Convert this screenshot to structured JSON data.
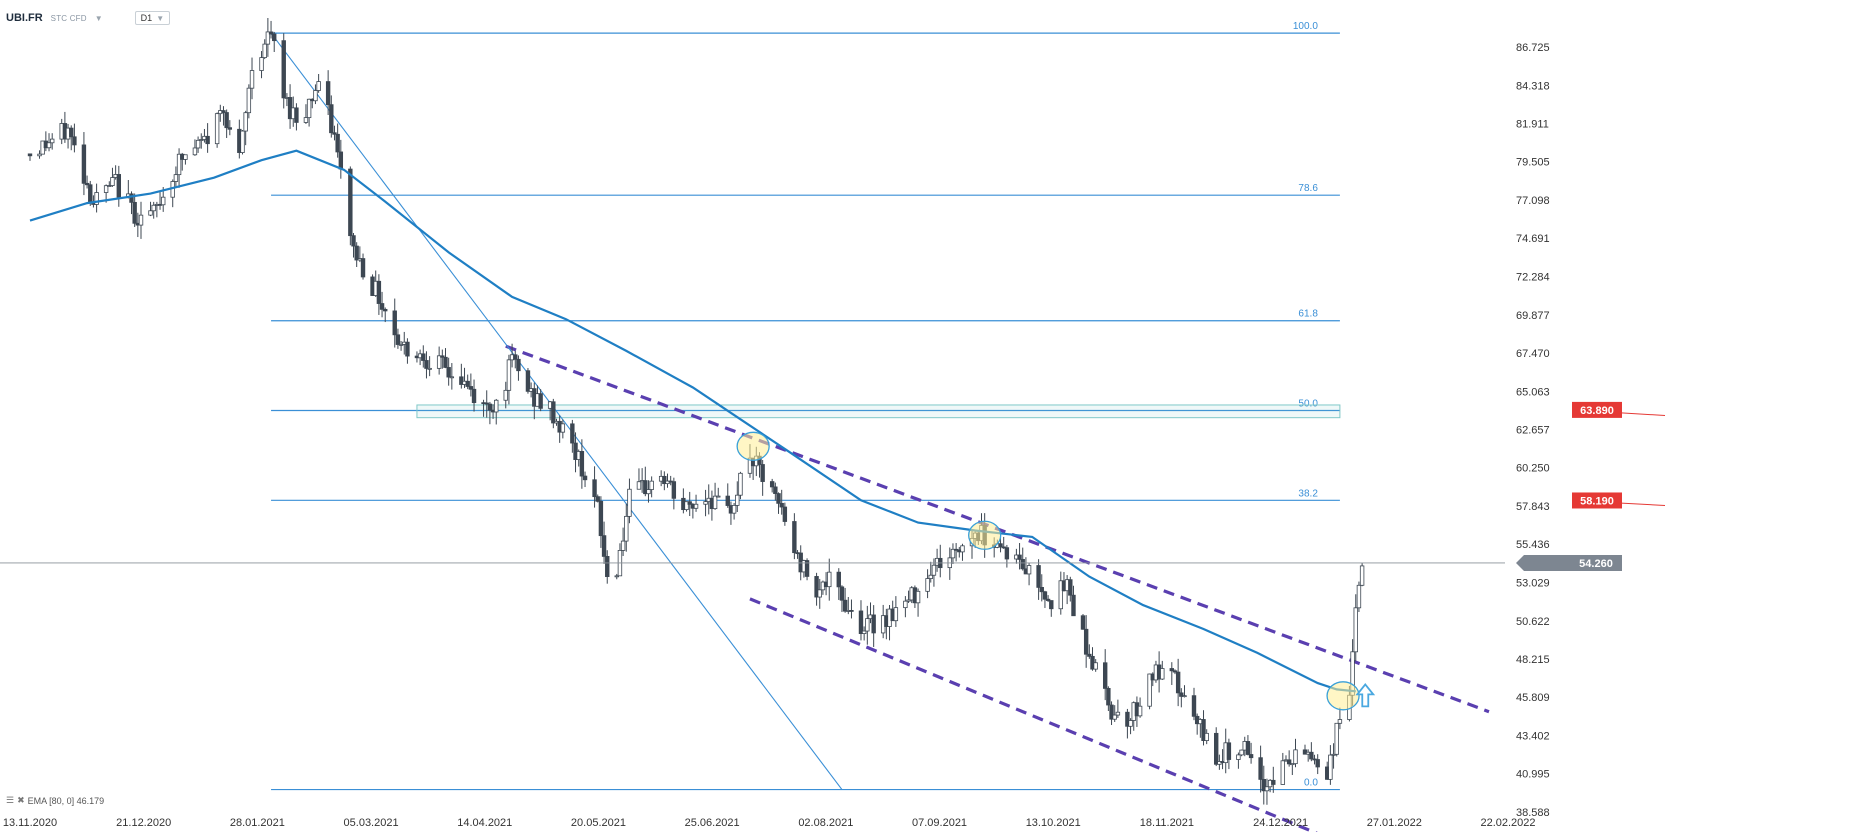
{
  "header": {
    "symbol": "UBI.FR",
    "instrument_type": "STC CFD",
    "timeframe": "D1"
  },
  "indicator_legend": {
    "text": "EMA [80, 0] 46.179"
  },
  "colors": {
    "fib": "#3a8fd6",
    "ema": "#1f7fc4",
    "channel": "#5a3fb0",
    "candle_up": "#ffffff",
    "candle_down": "#3d4752",
    "badge_red": "#e53935",
    "badge_gray": "#7d8691"
  },
  "chart_data": {
    "type": "candlestick",
    "x_axis": {
      "start": "2020-11-13",
      "end": "2022-02-22",
      "tick_labels": [
        "13.11.2020",
        "21.12.2020",
        "28.01.2021",
        "05.03.2021",
        "14.04.2021",
        "20.05.2021",
        "25.06.2021",
        "02.08.2021",
        "07.09.2021",
        "13.10.2021",
        "18.11.2021",
        "24.12.2021",
        "27.01.2022",
        "22.02.2022"
      ]
    },
    "y_axis": {
      "min": 38.588,
      "max": 86.725,
      "tick_labels": [
        "86.725",
        "84.318",
        "81.911",
        "79.505",
        "77.098",
        "74.691",
        "72.284",
        "69.877",
        "67.470",
        "65.063",
        "62.657",
        "60.250",
        "57.843",
        "55.436",
        "53.029",
        "50.622",
        "48.215",
        "45.809",
        "43.402",
        "40.995",
        "38.588"
      ]
    },
    "last_price": "54.260",
    "price_badges": [
      {
        "value": "63.890",
        "color": "red"
      },
      {
        "value": "58.190",
        "color": "red"
      }
    ],
    "fibonacci": {
      "start": "2021-01-28",
      "end": "2021-12-31",
      "levels": [
        {
          "label": "100.0",
          "price": 87.6
        },
        {
          "label": "78.6",
          "price": 77.4
        },
        {
          "label": "61.8",
          "price": 69.5
        },
        {
          "label": "50.0",
          "price": 63.85
        },
        {
          "label": "38.2",
          "price": 58.2
        },
        {
          "label": "0.0",
          "price": 40.0
        }
      ]
    },
    "zone": {
      "from": 63.4,
      "to": 64.2
    },
    "ema": {
      "name": "EMA [80, 0]",
      "value": 46.179,
      "points": [
        [
          "2020-11-13",
          75.8
        ],
        [
          "2020-12-01",
          76.9
        ],
        [
          "2020-12-21",
          77.5
        ],
        [
          "2021-01-10",
          78.5
        ],
        [
          "2021-01-25",
          79.6
        ],
        [
          "2021-02-05",
          80.2
        ],
        [
          "2021-02-20",
          79.0
        ],
        [
          "2021-03-05",
          77.0
        ],
        [
          "2021-03-25",
          73.8
        ],
        [
          "2021-04-14",
          71.0
        ],
        [
          "2021-05-01",
          69.6
        ],
        [
          "2021-05-20",
          67.6
        ],
        [
          "2021-06-10",
          65.3
        ],
        [
          "2021-06-25",
          63.3
        ],
        [
          "2021-07-10",
          61.3
        ],
        [
          "2021-08-02",
          58.2
        ],
        [
          "2021-08-20",
          56.8
        ],
        [
          "2021-09-07",
          56.3
        ],
        [
          "2021-09-25",
          55.9
        ],
        [
          "2021-10-13",
          53.4
        ],
        [
          "2021-10-30",
          51.6
        ],
        [
          "2021-11-18",
          50.1
        ],
        [
          "2021-12-05",
          48.6
        ],
        [
          "2021-12-24",
          46.7
        ],
        [
          "2021-12-30",
          46.3
        ],
        [
          "2022-01-05",
          46.18
        ]
      ]
    },
    "trendlines": [
      {
        "name": "Upper channel",
        "style": "dashed",
        "from": [
          "2021-04-12",
          67.9
        ],
        "to": [
          "2022-02-16",
          44.9
        ]
      },
      {
        "name": "Lower channel",
        "style": "dashed",
        "from": [
          "2021-06-28",
          52.0
        ],
        "to": [
          "2022-01-03",
          36.4
        ]
      },
      {
        "name": "Fibonacci trend",
        "style": "solid",
        "from": [
          "2021-01-28",
          87.6
        ],
        "to": [
          "2021-07-27",
          40.0
        ]
      }
    ],
    "highlights": [
      {
        "date": "2021-06-29",
        "price": 61.6
      },
      {
        "date": "2021-09-10",
        "price": 56.0
      },
      {
        "date": "2022-01-01",
        "price": 45.9
      }
    ],
    "arrow": {
      "date": "2022-01-08",
      "price": 45.8,
      "direction": "up"
    },
    "series_close_path": [
      [
        "2020-11-13",
        80.0
      ],
      [
        "2020-11-25",
        81.5
      ],
      [
        "2020-12-03",
        77.0
      ],
      [
        "2020-12-10",
        78.2
      ],
      [
        "2020-12-17",
        76.0
      ],
      [
        "2020-12-22",
        76.2
      ],
      [
        "2020-12-30",
        79.5
      ],
      [
        "2021-01-08",
        81.0
      ],
      [
        "2021-01-13",
        83.0
      ],
      [
        "2021-01-18",
        79.5
      ],
      [
        "2021-01-22",
        85.5
      ],
      [
        "2021-01-28",
        87.6
      ],
      [
        "2021-02-01",
        83.5
      ],
      [
        "2021-02-06",
        82.0
      ],
      [
        "2021-02-12",
        84.5
      ],
      [
        "2021-02-17",
        81.0
      ],
      [
        "2021-02-23",
        74.0
      ],
      [
        "2021-03-03",
        71.0
      ],
      [
        "2021-03-10",
        68.0
      ],
      [
        "2021-03-20",
        67.0
      ],
      [
        "2021-03-30",
        65.5
      ],
      [
        "2021-04-05",
        64.0
      ],
      [
        "2021-04-10",
        64.5
      ],
      [
        "2021-04-14",
        67.0
      ],
      [
        "2021-04-20",
        64.8
      ],
      [
        "2021-04-26",
        63.8
      ],
      [
        "2021-05-02",
        62.0
      ],
      [
        "2021-05-08",
        59.5
      ],
      [
        "2021-05-11",
        57.5
      ],
      [
        "2021-05-14",
        53.3
      ],
      [
        "2021-05-17",
        54.0
      ],
      [
        "2021-05-21",
        58.2
      ],
      [
        "2021-05-31",
        59.8
      ],
      [
        "2021-06-07",
        57.6
      ],
      [
        "2021-06-15",
        58.5
      ],
      [
        "2021-06-21",
        57.3
      ],
      [
        "2021-06-28",
        61.0
      ],
      [
        "2021-07-02",
        59.6
      ],
      [
        "2021-07-08",
        57.5
      ],
      [
        "2021-07-13",
        54.5
      ],
      [
        "2021-07-19",
        52.8
      ],
      [
        "2021-07-23",
        53.0
      ],
      [
        "2021-07-30",
        51.2
      ],
      [
        "2021-08-03",
        50.2
      ],
      [
        "2021-08-09",
        50.8
      ],
      [
        "2021-08-17",
        51.8
      ],
      [
        "2021-08-24",
        54.0
      ],
      [
        "2021-08-31",
        54.8
      ],
      [
        "2021-09-07",
        56.2
      ],
      [
        "2021-09-13",
        55.8
      ],
      [
        "2021-09-17",
        55.0
      ],
      [
        "2021-09-24",
        53.7
      ],
      [
        "2021-10-01",
        52.0
      ],
      [
        "2021-10-06",
        52.8
      ],
      [
        "2021-10-13",
        48.5
      ],
      [
        "2021-10-20",
        45.0
      ],
      [
        "2021-10-26",
        44.5
      ],
      [
        "2021-11-02",
        47.3
      ],
      [
        "2021-11-09",
        46.8
      ],
      [
        "2021-11-16",
        44.0
      ],
      [
        "2021-11-23",
        42.0
      ],
      [
        "2021-11-30",
        42.9
      ],
      [
        "2021-12-06",
        40.0
      ],
      [
        "2021-12-13",
        41.5
      ],
      [
        "2021-12-21",
        42.4
      ],
      [
        "2021-12-27",
        41.0
      ],
      [
        "2021-12-31",
        44.5
      ],
      [
        "2022-01-03",
        46.4
      ],
      [
        "2022-01-05",
        50.9
      ],
      [
        "2022-01-07",
        54.26
      ]
    ]
  }
}
